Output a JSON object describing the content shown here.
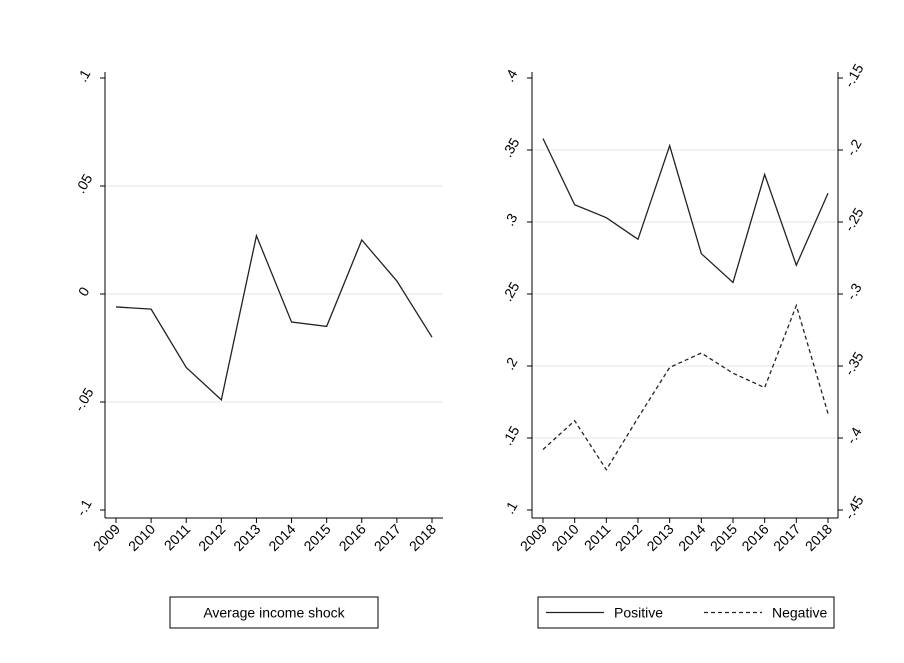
{
  "chart_data": [
    {
      "type": "line",
      "categories": [
        "2009",
        "2010",
        "2011",
        "2012",
        "2013",
        "2014",
        "2015",
        "2016",
        "2017",
        "2018"
      ],
      "series": [
        {
          "name": "Average income shock",
          "color": "#222222",
          "style": "solid",
          "values": [
            -0.006,
            -0.007,
            -0.034,
            -0.049,
            0.027,
            -0.013,
            -0.015,
            0.025,
            0.006,
            -0.02
          ]
        }
      ],
      "ylim": [
        -0.1,
        0.1
      ],
      "yticks": [
        {
          "value": -0.1,
          "label": "-.1"
        },
        {
          "value": -0.05,
          "label": "-.05"
        },
        0,
        {
          "value": 0.05,
          "label": ".05"
        },
        {
          "value": 0.1,
          "label": ".1"
        }
      ],
      "grid": true,
      "legend": "bottom",
      "legend_sample": false
    },
    {
      "type": "line",
      "categories": [
        "2009",
        "2010",
        "2011",
        "2012",
        "2013",
        "2014",
        "2015",
        "2016",
        "2017",
        "2018"
      ],
      "series": [
        {
          "name": "Positive",
          "color": "#222222",
          "style": "solid",
          "values": [
            0.358,
            0.312,
            0.303,
            0.288,
            0.353,
            0.278,
            0.258,
            0.333,
            0.27,
            0.32
          ]
        },
        {
          "name": "Negative",
          "color": "#222222",
          "style": "dashed",
          "axis": "y2",
          "values": [
            -0.408,
            -0.388,
            -0.422,
            -0.386,
            -0.351,
            -0.341,
            -0.355,
            -0.365,
            -0.308,
            -0.383
          ]
        }
      ],
      "ylim": [
        0.1,
        0.4
      ],
      "yticks": [
        {
          "value": 0.1,
          "label": ".1"
        },
        {
          "value": 0.15,
          "label": ".15"
        },
        {
          "value": 0.2,
          "label": ".2"
        },
        {
          "value": 0.25,
          "label": ".25"
        },
        {
          "value": 0.3,
          "label": ".3"
        },
        {
          "value": 0.35,
          "label": ".35"
        },
        {
          "value": 0.4,
          "label": ".4"
        }
      ],
      "y2lim": [
        -0.45,
        -0.15
      ],
      "y2ticks": [
        {
          "value": -0.45,
          "label": "-.45"
        },
        {
          "value": -0.4,
          "label": "-.4"
        },
        {
          "value": -0.35,
          "label": "-.35"
        },
        {
          "value": -0.3,
          "label": "-.3"
        },
        {
          "value": -0.25,
          "label": "-.25"
        },
        {
          "value": -0.2,
          "label": "-.2"
        },
        {
          "value": -0.15,
          "label": "-.15"
        }
      ],
      "grid": true,
      "legend": "bottom",
      "legend_sample": true
    }
  ]
}
